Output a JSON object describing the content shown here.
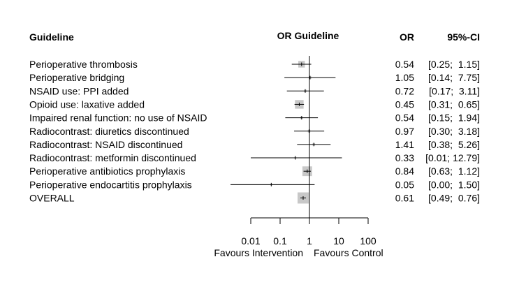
{
  "chart_data": {
    "type": "forest",
    "headers": {
      "study": "Guideline",
      "plot": "OR Guideline",
      "estimate": "OR",
      "ci": "95%-CI"
    },
    "rows": [
      {
        "label": "Perioperative thrombosis",
        "or": 0.54,
        "lower": 0.25,
        "upper": 1.15,
        "or_text": "0.54",
        "ci_text": "[0.25;  1.15]",
        "weight": 0.35
      },
      {
        "label": "Perioperative bridging",
        "or": 1.05,
        "lower": 0.14,
        "upper": 7.75,
        "or_text": "1.05",
        "ci_text": "[0.14;  7.75]",
        "weight": 0.05
      },
      {
        "label": "NSAID use: PPI added",
        "or": 0.72,
        "lower": 0.17,
        "upper": 3.11,
        "or_text": "0.72",
        "ci_text": "[0.17;  3.11]",
        "weight": 0.05
      },
      {
        "label": "Opioid use: laxative added",
        "or": 0.45,
        "lower": 0.31,
        "upper": 0.65,
        "or_text": "0.45",
        "ci_text": "[0.31;  0.65]",
        "weight": 0.6
      },
      {
        "label": "Impaired renal function: no use of NSAID",
        "or": 0.54,
        "lower": 0.15,
        "upper": 1.94,
        "or_text": "0.54",
        "ci_text": "[0.15;  1.94]",
        "weight": 0.05
      },
      {
        "label": "Radiocontrast: diuretics discontinued",
        "or": 0.97,
        "lower": 0.3,
        "upper": 3.18,
        "or_text": "0.97",
        "ci_text": "[0.30;  3.18]",
        "weight": 0.05
      },
      {
        "label": "Radiocontrast: NSAID discontinued",
        "or": 1.41,
        "lower": 0.38,
        "upper": 5.26,
        "or_text": "1.41",
        "ci_text": "[0.38;  5.26]",
        "weight": 0.05
      },
      {
        "label": "Radiocontrast: metformin discontinued",
        "or": 0.33,
        "lower": 0.01,
        "upper": 12.79,
        "or_text": "0.33",
        "ci_text": "[0.01; 12.79]",
        "weight": 0.03
      },
      {
        "label": "Perioperative antibiotics prophylaxis",
        "or": 0.84,
        "lower": 0.63,
        "upper": 1.12,
        "or_text": "0.84",
        "ci_text": "[0.63;  1.12]",
        "weight": 0.75
      },
      {
        "label": "Perioperative endocartitis prophylaxis",
        "or": 0.05,
        "lower": 0.0,
        "upper": 1.5,
        "or_text": "0.05",
        "ci_text": "[0.00;  1.50]",
        "weight": 0.03
      },
      {
        "label": "OVERALL",
        "or": 0.61,
        "lower": 0.49,
        "upper": 0.76,
        "or_text": "0.61",
        "ci_text": "[0.49;  0.76]",
        "weight": 1.0
      }
    ],
    "x_axis": {
      "scale": "log",
      "ticks": [
        0.01,
        0.1,
        1,
        10,
        100
      ],
      "tick_labels": [
        "0.01",
        "0.1",
        "1",
        "10",
        "100"
      ],
      "reference_line": 1,
      "left_label": "Favours Intervention",
      "right_label": "Favours Control"
    },
    "colors": {
      "box": "#c8c8c8",
      "line": "#000000",
      "text": "#000000"
    }
  }
}
